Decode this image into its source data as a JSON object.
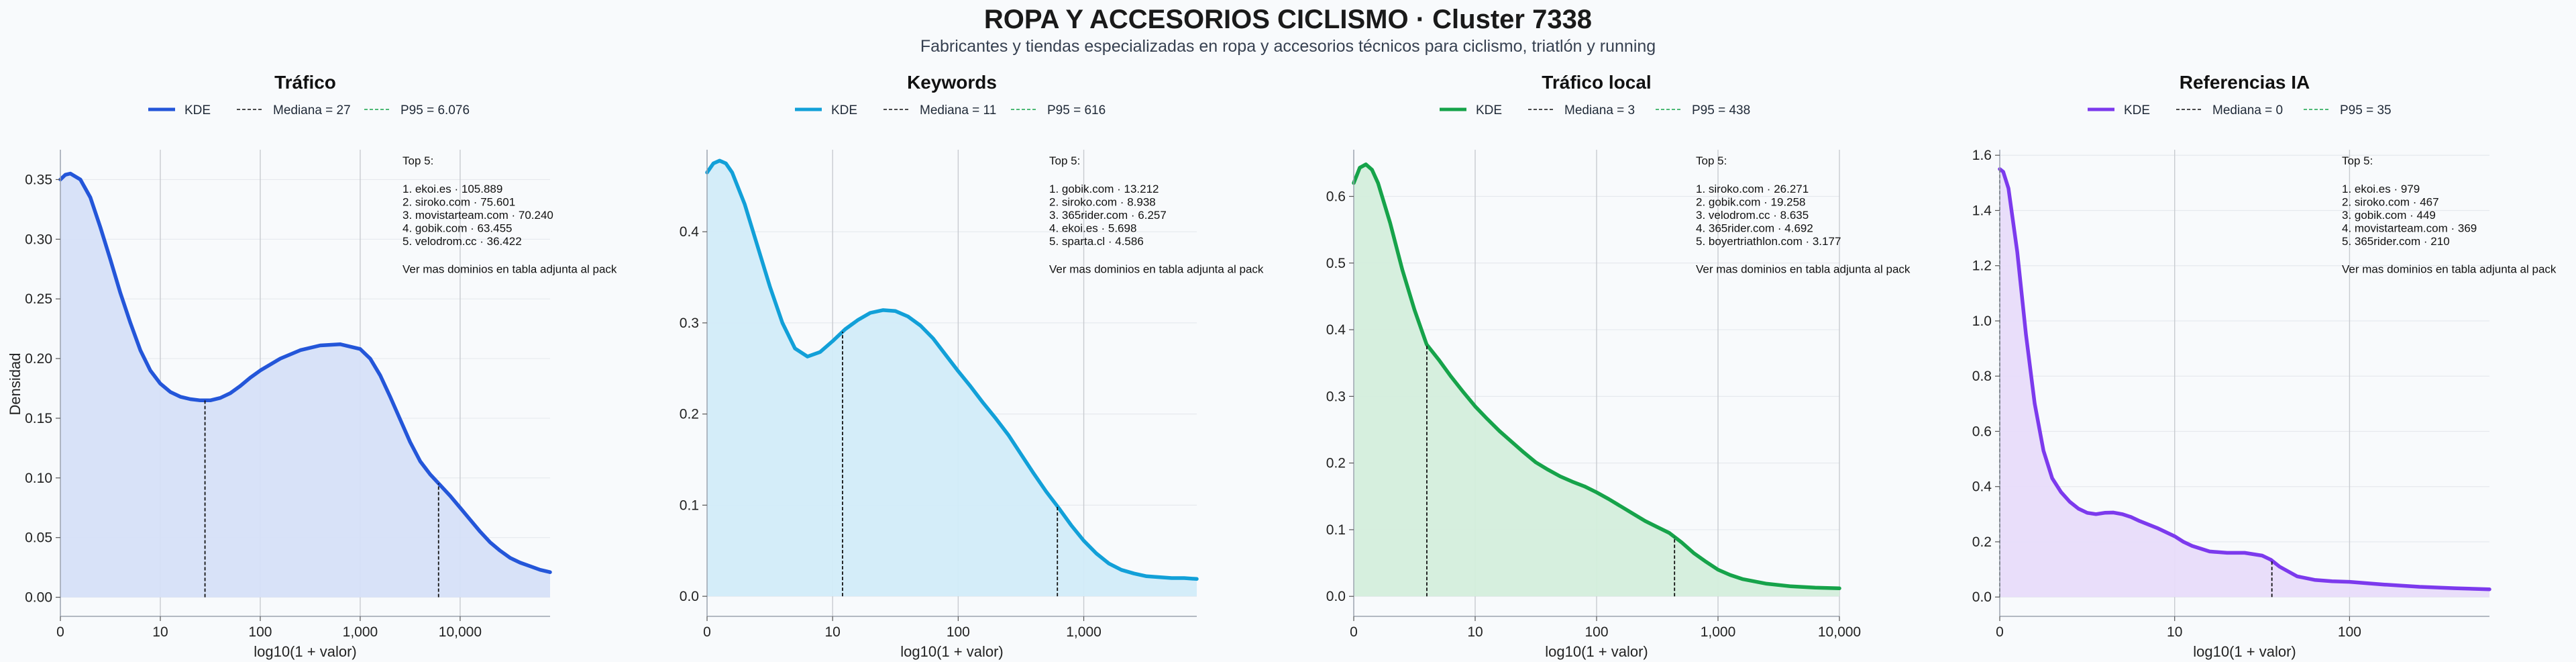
{
  "figure": {
    "title": "ROPA Y ACCESORIOS CICLISMO · Cluster 7338",
    "subtitle": "Fabricantes y tiendas especializadas en ropa y accesorios técnicos para ciclismo, triatlón y running",
    "ylabel": "Densidad"
  },
  "chart_data": [
    {
      "type": "area",
      "title": "Tráfico",
      "color": "#2456d9",
      "fill": "#d6e0f8",
      "xlabel": "log10(1 + valor)",
      "xlim": [
        0,
        4.9
      ],
      "ylim": [
        -0.016,
        0.375
      ],
      "xticks": [
        0,
        1,
        2,
        3,
        4
      ],
      "xtick_labels": [
        "0",
        "10",
        "100",
        "1,000",
        "10,000"
      ],
      "yticks": [
        0,
        0.05,
        0.1,
        0.15,
        0.2,
        0.25,
        0.3,
        0.35
      ],
      "ytick_labels": [
        "0.00",
        "0.05",
        "0.10",
        "0.15",
        "0.20",
        "0.25",
        "0.30",
        "0.35"
      ],
      "legend": {
        "kde": "KDE",
        "median": "Mediana = 27",
        "p95": "P95 = 6.076"
      },
      "median_x": 1.447,
      "p95_x": 3.784,
      "kde": {
        "x": [
          0,
          0.05,
          0.1,
          0.2,
          0.3,
          0.4,
          0.5,
          0.6,
          0.7,
          0.8,
          0.9,
          1.0,
          1.1,
          1.2,
          1.3,
          1.4,
          1.5,
          1.6,
          1.7,
          1.8,
          1.9,
          2.0,
          2.2,
          2.4,
          2.6,
          2.8,
          3.0,
          3.1,
          3.2,
          3.3,
          3.4,
          3.5,
          3.6,
          3.7,
          3.8,
          3.9,
          4.0,
          4.1,
          4.2,
          4.3,
          4.4,
          4.5,
          4.6,
          4.7,
          4.8,
          4.9
        ],
        "y": [
          0.35,
          0.354,
          0.355,
          0.35,
          0.335,
          0.31,
          0.283,
          0.255,
          0.23,
          0.207,
          0.19,
          0.179,
          0.172,
          0.168,
          0.166,
          0.165,
          0.165,
          0.167,
          0.171,
          0.177,
          0.184,
          0.19,
          0.2,
          0.207,
          0.211,
          0.212,
          0.208,
          0.2,
          0.186,
          0.168,
          0.149,
          0.13,
          0.114,
          0.103,
          0.094,
          0.085,
          0.075,
          0.065,
          0.055,
          0.046,
          0.039,
          0.033,
          0.029,
          0.026,
          0.023,
          0.021
        ]
      },
      "top5": {
        "heading": "Top 5:",
        "items": [
          "1. ekoi.es · 105.889",
          "2. siroko.com · 75.601",
          "3. movistarteam.com · 70.240",
          "4. gobik.com · 63.455",
          "5. velodrom.cc · 36.422"
        ],
        "footer": "Ver mas dominios en tabla adjunta al pack"
      }
    },
    {
      "type": "area",
      "title": "Keywords",
      "color": "#12a0d8",
      "fill": "#d2ecf9",
      "xlabel": "log10(1 + valor)",
      "xlim": [
        0,
        3.9
      ],
      "ylim": [
        -0.022,
        0.49
      ],
      "xticks": [
        0,
        1,
        2,
        3
      ],
      "xtick_labels": [
        "0",
        "10",
        "100",
        "1,000"
      ],
      "yticks": [
        0,
        0.1,
        0.2,
        0.3,
        0.4
      ],
      "ytick_labels": [
        "0.0",
        "0.1",
        "0.2",
        "0.3",
        "0.4"
      ],
      "legend": {
        "kde": "KDE",
        "median": "Mediana = 11",
        "p95": "P95 = 616"
      },
      "median_x": 1.079,
      "p95_x": 2.79,
      "kde": {
        "x": [
          0,
          0.05,
          0.1,
          0.15,
          0.2,
          0.3,
          0.4,
          0.5,
          0.6,
          0.7,
          0.8,
          0.9,
          1.0,
          1.1,
          1.2,
          1.3,
          1.4,
          1.5,
          1.6,
          1.7,
          1.8,
          1.9,
          2.0,
          2.1,
          2.2,
          2.3,
          2.4,
          2.5,
          2.6,
          2.7,
          2.8,
          2.9,
          3.0,
          3.1,
          3.2,
          3.3,
          3.4,
          3.5,
          3.6,
          3.7,
          3.8,
          3.9
        ],
        "y": [
          0.465,
          0.475,
          0.478,
          0.475,
          0.465,
          0.43,
          0.385,
          0.34,
          0.3,
          0.272,
          0.263,
          0.268,
          0.28,
          0.293,
          0.303,
          0.311,
          0.314,
          0.313,
          0.307,
          0.297,
          0.283,
          0.265,
          0.247,
          0.23,
          0.212,
          0.195,
          0.177,
          0.156,
          0.135,
          0.115,
          0.097,
          0.078,
          0.061,
          0.047,
          0.036,
          0.029,
          0.025,
          0.022,
          0.021,
          0.02,
          0.02,
          0.019
        ]
      },
      "top5": {
        "heading": "Top 5:",
        "items": [
          "1. gobik.com · 13.212",
          "2. siroko.com · 8.938",
          "3. 365rider.com · 6.257",
          "4. ekoi.es · 5.698",
          "5. sparta.cl · 4.586"
        ],
        "footer": "Ver mas dominios en tabla adjunta al pack"
      }
    },
    {
      "type": "area",
      "title": "Tráfico local",
      "color": "#16a34a",
      "fill": "#d4eedc",
      "xlabel": "log10(1 + valor)",
      "xlim": [
        0,
        4.0
      ],
      "ylim": [
        -0.03,
        0.67
      ],
      "xticks": [
        0,
        1,
        2,
        3,
        4
      ],
      "xtick_labels": [
        "0",
        "10",
        "100",
        "1,000",
        "10,000"
      ],
      "yticks": [
        0,
        0.1,
        0.2,
        0.3,
        0.4,
        0.5,
        0.6
      ],
      "ytick_labels": [
        "0.0",
        "0.1",
        "0.2",
        "0.3",
        "0.4",
        "0.5",
        "0.6"
      ],
      "legend": {
        "kde": "KDE",
        "median": "Mediana = 3",
        "p95": "P95 = 438"
      },
      "median_x": 0.602,
      "p95_x": 2.642,
      "kde": {
        "x": [
          0,
          0.05,
          0.1,
          0.15,
          0.2,
          0.3,
          0.4,
          0.5,
          0.6,
          0.7,
          0.8,
          0.9,
          1.0,
          1.1,
          1.2,
          1.3,
          1.4,
          1.5,
          1.6,
          1.7,
          1.8,
          1.9,
          2.0,
          2.1,
          2.2,
          2.3,
          2.4,
          2.5,
          2.6,
          2.7,
          2.8,
          2.9,
          3.0,
          3.1,
          3.2,
          3.4,
          3.6,
          3.8,
          4.0
        ],
        "y": [
          0.62,
          0.643,
          0.648,
          0.64,
          0.62,
          0.56,
          0.49,
          0.43,
          0.378,
          0.355,
          0.33,
          0.307,
          0.285,
          0.266,
          0.248,
          0.232,
          0.216,
          0.201,
          0.19,
          0.18,
          0.172,
          0.165,
          0.156,
          0.146,
          0.135,
          0.124,
          0.113,
          0.104,
          0.095,
          0.081,
          0.065,
          0.052,
          0.04,
          0.032,
          0.026,
          0.019,
          0.015,
          0.013,
          0.012
        ]
      },
      "top5": {
        "heading": "Top 5:",
        "items": [
          "1. siroko.com · 26.271",
          "2. gobik.com · 19.258",
          "3. velodrom.cc · 8.635",
          "4. 365rider.com · 4.692",
          "5. boyertriathlon.com · 3.177"
        ],
        "footer": "Ver mas dominios en tabla adjunta al pack"
      }
    },
    {
      "type": "area",
      "title": "Referencias IA",
      "color": "#7c3aed",
      "fill": "#e8dcfa",
      "xlabel": "log10(1 + valor)",
      "xlim": [
        0,
        2.8
      ],
      "ylim": [
        -0.07,
        1.62
      ],
      "xticks": [
        0,
        1,
        2
      ],
      "xtick_labels": [
        "0",
        "10",
        "100"
      ],
      "yticks": [
        0,
        0.2,
        0.4,
        0.6,
        0.8,
        1.0,
        1.2,
        1.4,
        1.6
      ],
      "ytick_labels": [
        "0.0",
        "0.2",
        "0.4",
        "0.6",
        "0.8",
        "1.0",
        "1.2",
        "1.4",
        "1.6"
      ],
      "legend": {
        "kde": "KDE",
        "median": "Mediana = 0",
        "p95": "P95 = 35"
      },
      "median_x": 0,
      "p95_x": 1.556,
      "kde": {
        "x": [
          0,
          0.02,
          0.05,
          0.1,
          0.15,
          0.2,
          0.25,
          0.3,
          0.35,
          0.4,
          0.45,
          0.5,
          0.55,
          0.6,
          0.65,
          0.7,
          0.75,
          0.8,
          0.9,
          1.0,
          1.05,
          1.1,
          1.2,
          1.3,
          1.4,
          1.5,
          1.55,
          1.6,
          1.7,
          1.8,
          1.9,
          2.0,
          2.2,
          2.4,
          2.6,
          2.8
        ],
        "y": [
          1.55,
          1.54,
          1.48,
          1.25,
          0.95,
          0.7,
          0.53,
          0.43,
          0.38,
          0.345,
          0.32,
          0.305,
          0.3,
          0.305,
          0.306,
          0.3,
          0.29,
          0.275,
          0.25,
          0.22,
          0.2,
          0.185,
          0.165,
          0.16,
          0.16,
          0.15,
          0.135,
          0.11,
          0.075,
          0.062,
          0.057,
          0.055,
          0.045,
          0.037,
          0.032,
          0.028
        ]
      },
      "top5": {
        "heading": "Top 5:",
        "items": [
          "1. ekoi.es · 979",
          "2. siroko.com · 467",
          "3. gobik.com · 449",
          "4. movistarteam.com · 369",
          "5. 365rider.com · 210"
        ],
        "footer": "Ver mas dominios en tabla adjunta al pack"
      }
    }
  ]
}
